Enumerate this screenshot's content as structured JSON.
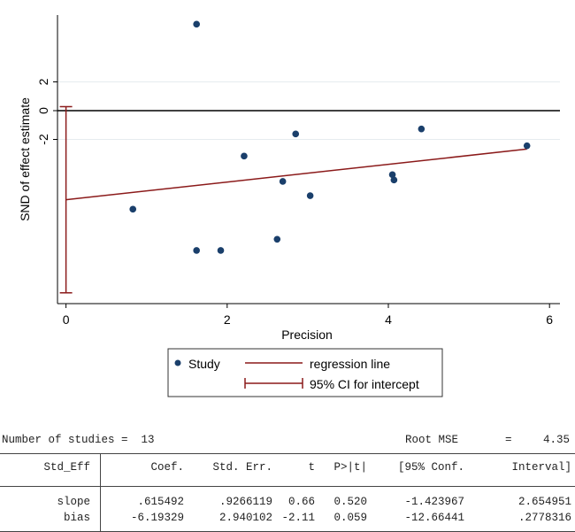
{
  "chart_data": {
    "type": "scatter",
    "xlabel": "Precision",
    "ylabel": "SND of effect estimate",
    "xlim": [
      -0.2,
      6.2
    ],
    "ylim": [
      -13.3,
      6.6
    ],
    "xticks": [
      "0",
      "2",
      "4",
      "6"
    ],
    "yticks": [
      "2",
      "0",
      "-2"
    ],
    "series": [
      {
        "name": "Study",
        "x": [
          1.62,
          0.83,
          1.62,
          1.92,
          2.21,
          2.62,
          2.69,
          2.85,
          3.03,
          4.05,
          4.07,
          4.41,
          5.72
        ],
        "y": [
          6.01,
          -6.85,
          -9.72,
          -9.72,
          -3.16,
          -8.94,
          -4.92,
          -1.62,
          -5.91,
          -4.45,
          -4.82,
          -1.27,
          -2.44
        ]
      }
    ],
    "regression": {
      "name": "regression line",
      "intercept": -6.19329,
      "slope": 0.615492,
      "x_range": [
        0,
        5.72
      ]
    },
    "ci": {
      "name": "95% CI for intercept",
      "low": -12.66441,
      "high": 0.2778316
    },
    "colors": {
      "points": "#1a3f6b",
      "line": "#8b1a1a"
    }
  },
  "summary": {
    "n_label": "Number of studies =  13",
    "rmse_label": "Root MSE",
    "rmse_eq": "=",
    "rmse_value": "4.35"
  },
  "table": {
    "headers": [
      "Std_Eff",
      "Coef.",
      "Std. Err.",
      "t",
      "P>|t|",
      "[95% Conf.",
      "Interval]"
    ],
    "rows": [
      [
        "slope",
        ".615492",
        ".9266119",
        "0.66",
        "0.520",
        "-1.423967",
        "2.654951"
      ],
      [
        "bias",
        "-6.19329",
        "2.940102",
        "-2.11",
        "0.059",
        "-12.66441",
        ".2778316"
      ]
    ]
  }
}
